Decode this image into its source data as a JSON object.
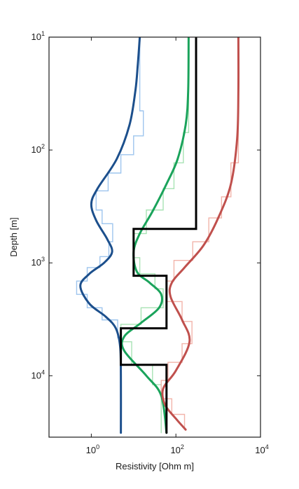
{
  "chart_data": {
    "type": "line",
    "xlabel": "Resistivity [Ohm m]",
    "ylabel": "Depth  [m]",
    "x_scale": "log",
    "y_scale": "log",
    "y_inverted": true,
    "xlim": [
      0.1,
      10000
    ],
    "ylim": [
      10,
      35000
    ],
    "x_ticks": [
      {
        "base": "10",
        "exp": "0",
        "value": 1
      },
      {
        "base": "10",
        "exp": "2",
        "value": 100
      },
      {
        "base": "10",
        "exp": "4",
        "value": 10000
      }
    ],
    "y_ticks": [
      {
        "base": "10",
        "exp": "1",
        "value": 10
      },
      {
        "base": "10",
        "exp": "2",
        "value": 100
      },
      {
        "base": "10",
        "exp": "3",
        "value": 1000
      },
      {
        "base": "10",
        "exp": "4",
        "value": 10000
      }
    ],
    "grid": false,
    "legend": "none",
    "series": [
      {
        "color": "#1c4f8c",
        "style": "solid",
        "points": [
          [
            14,
            10
          ],
          [
            12.5,
            18
          ],
          [
            11,
            30
          ],
          [
            8,
            60
          ],
          [
            4,
            120
          ],
          [
            1.4,
            220
          ],
          [
            1.0,
            300
          ],
          [
            1.3,
            420
          ],
          [
            2.4,
            620
          ],
          [
            3.1,
            800
          ],
          [
            2.0,
            1000
          ],
          [
            0.9,
            1250
          ],
          [
            0.55,
            1600
          ],
          [
            0.9,
            2300
          ],
          [
            2.2,
            3000
          ],
          [
            3.8,
            3800
          ],
          [
            4.8,
            5500
          ],
          [
            5.0,
            10000
          ],
          [
            5.0,
            32000
          ]
        ]
      },
      {
        "color": "#1aa35b",
        "style": "solid",
        "points": [
          [
            200,
            10
          ],
          [
            195,
            30
          ],
          [
            170,
            60
          ],
          [
            110,
            120
          ],
          [
            60,
            200
          ],
          [
            28,
            350
          ],
          [
            14,
            550
          ],
          [
            10,
            800
          ],
          [
            12,
            1200
          ],
          [
            24,
            1500
          ],
          [
            45,
            1900
          ],
          [
            40,
            2500
          ],
          [
            15,
            3400
          ],
          [
            6,
            4500
          ],
          [
            6,
            6000
          ],
          [
            20,
            10000
          ],
          [
            45,
            15000
          ],
          [
            60,
            32000
          ]
        ]
      },
      {
        "color": "#c0504d",
        "style": "solid",
        "points": [
          [
            3000,
            10
          ],
          [
            3000,
            30
          ],
          [
            2800,
            80
          ],
          [
            2000,
            200
          ],
          [
            1000,
            400
          ],
          [
            450,
            700
          ],
          [
            160,
            1100
          ],
          [
            80,
            1500
          ],
          [
            75,
            2000
          ],
          [
            140,
            3200
          ],
          [
            210,
            5000
          ],
          [
            100,
            9000
          ],
          [
            50,
            13000
          ],
          [
            55,
            18000
          ],
          [
            100,
            24000
          ],
          [
            170,
            30000
          ]
        ]
      },
      {
        "color": "#000000",
        "style": "step",
        "points": [
          [
            300,
            10
          ],
          [
            300,
            500
          ],
          [
            10,
            500
          ],
          [
            10,
            1300
          ],
          [
            60,
            1300
          ],
          [
            60,
            3800
          ],
          [
            5,
            3800
          ],
          [
            5,
            8000
          ],
          [
            60,
            8000
          ],
          [
            60,
            32000
          ]
        ]
      },
      {
        "color": "#9ec5ee",
        "style": "staircase",
        "points": [
          [
            14,
            10
          ],
          [
            14,
            45
          ],
          [
            17,
            45
          ],
          [
            17,
            75
          ],
          [
            10,
            75
          ],
          [
            10,
            110
          ],
          [
            5,
            110
          ],
          [
            5,
            160
          ],
          [
            2.5,
            160
          ],
          [
            2.5,
            230
          ],
          [
            1.3,
            230
          ],
          [
            1.3,
            340
          ],
          [
            1.8,
            340
          ],
          [
            1.8,
            450
          ],
          [
            3.2,
            450
          ],
          [
            3.2,
            650
          ],
          [
            2.6,
            650
          ],
          [
            2.6,
            880
          ],
          [
            1.6,
            880
          ],
          [
            1.6,
            1100
          ],
          [
            0.8,
            1100
          ],
          [
            0.8,
            1450
          ],
          [
            0.45,
            1450
          ],
          [
            0.45,
            1900
          ],
          [
            0.8,
            1900
          ],
          [
            0.8,
            2500
          ],
          [
            1.8,
            2500
          ],
          [
            1.8,
            3200
          ],
          [
            4.2,
            3200
          ],
          [
            4.2,
            4600
          ],
          [
            5.0,
            4600
          ],
          [
            5.0,
            32000
          ]
        ]
      },
      {
        "color": "#a8e3b4",
        "style": "staircase",
        "points": [
          [
            200,
            10
          ],
          [
            200,
            70
          ],
          [
            150,
            70
          ],
          [
            150,
            130
          ],
          [
            90,
            130
          ],
          [
            90,
            220
          ],
          [
            50,
            220
          ],
          [
            50,
            340
          ],
          [
            20,
            340
          ],
          [
            20,
            550
          ],
          [
            10,
            550
          ],
          [
            10,
            900
          ],
          [
            14,
            900
          ],
          [
            14,
            1250
          ],
          [
            32,
            1250
          ],
          [
            32,
            1700
          ],
          [
            50,
            1700
          ],
          [
            50,
            2500
          ],
          [
            15,
            2500
          ],
          [
            15,
            3500
          ],
          [
            5,
            3500
          ],
          [
            5,
            5000
          ],
          [
            9,
            5000
          ],
          [
            9,
            8000
          ],
          [
            28,
            8000
          ],
          [
            28,
            12000
          ],
          [
            45,
            12000
          ],
          [
            45,
            32000
          ]
        ]
      },
      {
        "color": "#f2b4aa",
        "style": "staircase",
        "points": [
          [
            3000,
            10
          ],
          [
            3000,
            130
          ],
          [
            2000,
            130
          ],
          [
            2000,
            260
          ],
          [
            1200,
            260
          ],
          [
            1200,
            400
          ],
          [
            600,
            400
          ],
          [
            600,
            650
          ],
          [
            250,
            650
          ],
          [
            250,
            950
          ],
          [
            90,
            950
          ],
          [
            90,
            1450
          ],
          [
            60,
            1450
          ],
          [
            60,
            2200
          ],
          [
            140,
            2200
          ],
          [
            140,
            3300
          ],
          [
            240,
            3300
          ],
          [
            240,
            5200
          ],
          [
            140,
            5200
          ],
          [
            140,
            7600
          ],
          [
            65,
            7600
          ],
          [
            65,
            11000
          ],
          [
            45,
            11000
          ],
          [
            45,
            16000
          ],
          [
            80,
            16000
          ],
          [
            80,
            22000
          ],
          [
            160,
            22000
          ],
          [
            160,
            30000
          ]
        ]
      }
    ]
  }
}
